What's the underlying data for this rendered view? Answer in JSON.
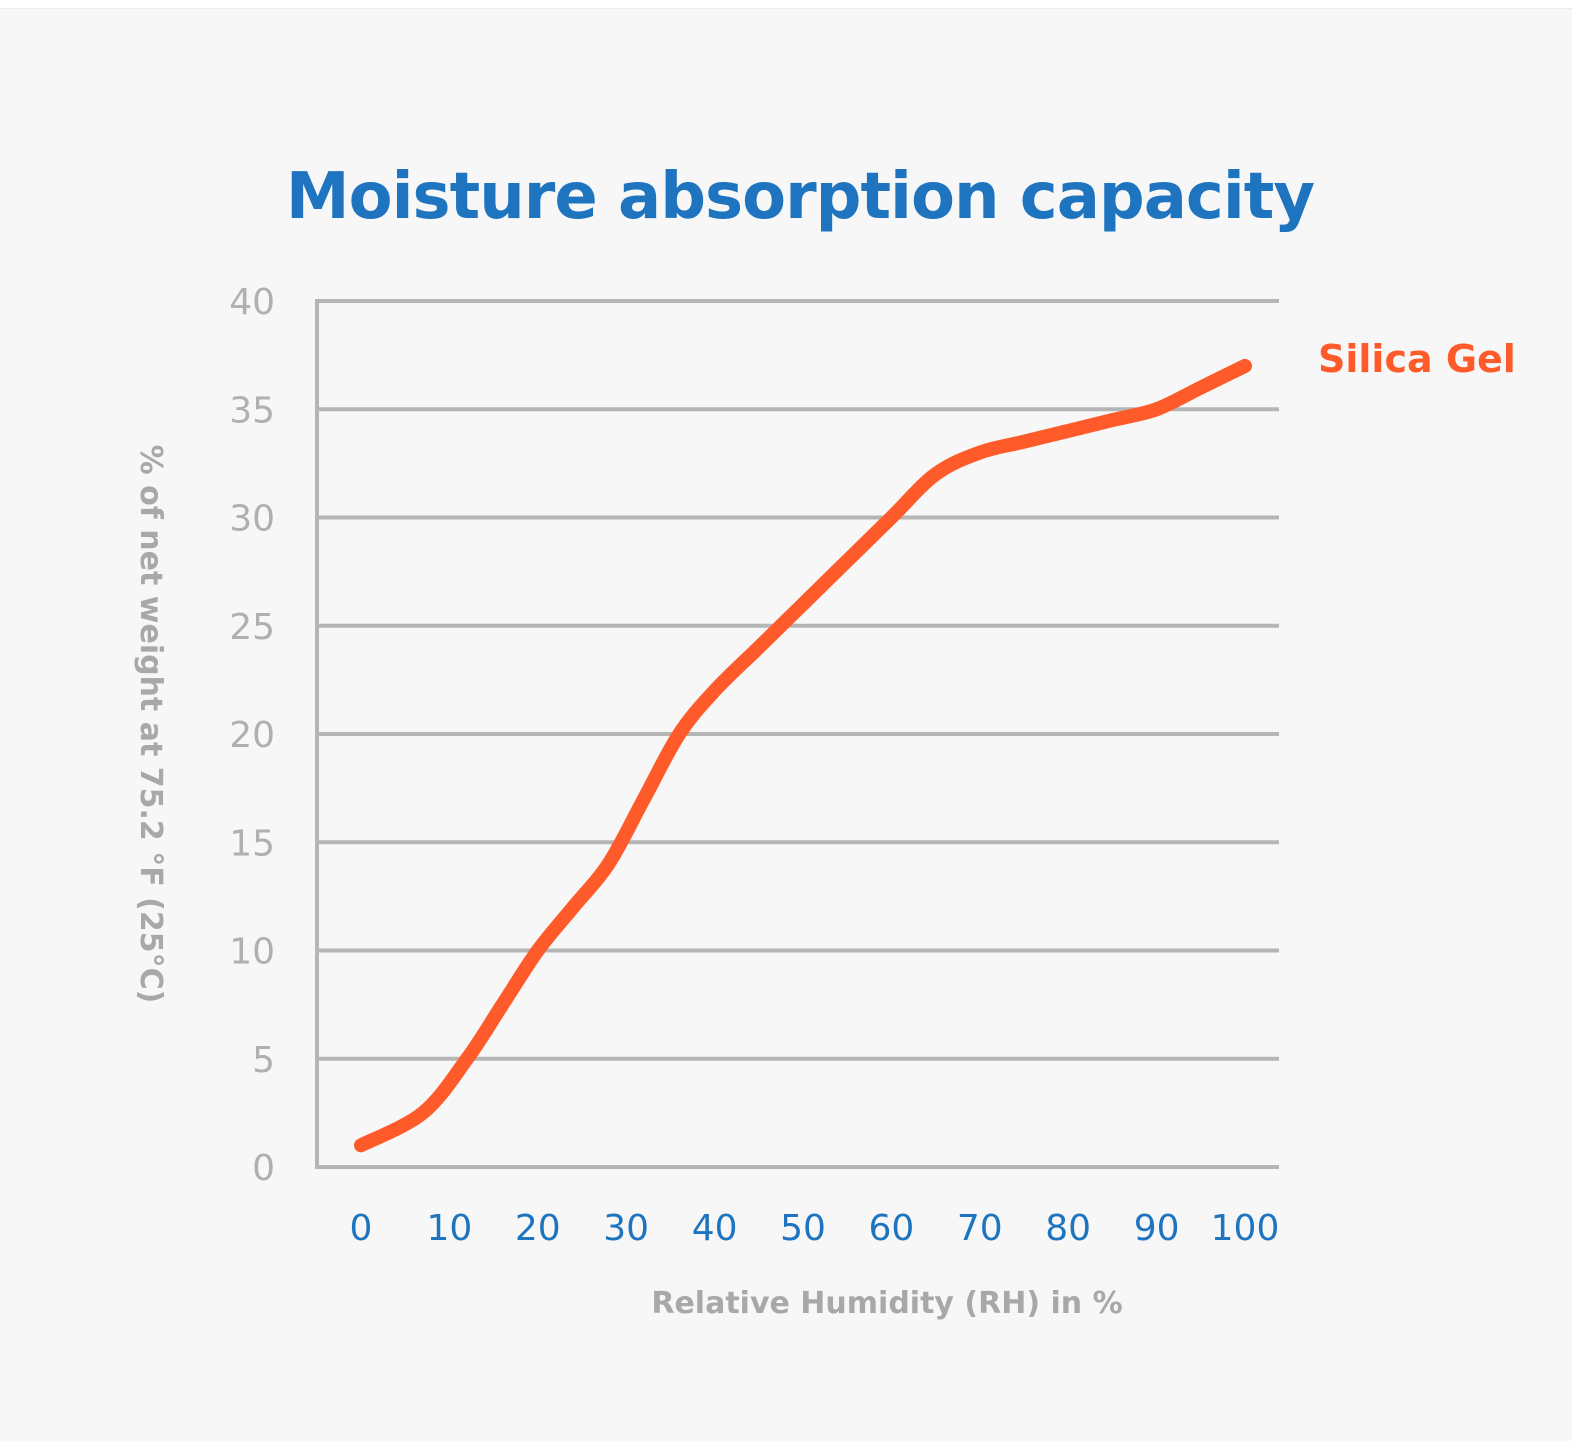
{
  "chart_data": {
    "type": "line",
    "title": "Moisture absorption capacity",
    "xlabel": "Relative Humidity (RH) in %",
    "ylabel": "% of net weight at 75.2 °F (25°C)",
    "xlim": [
      0,
      100
    ],
    "ylim": [
      0,
      40
    ],
    "x_ticks": [
      "0",
      "10",
      "20",
      "30",
      "40",
      "50",
      "60",
      "70",
      "80",
      "90",
      "100"
    ],
    "y_ticks": [
      "0",
      "5",
      "10",
      "15",
      "20",
      "25",
      "30",
      "35",
      "40"
    ],
    "grid": true,
    "series": [
      {
        "name": "Silica Gel",
        "color": "#ff5a2a",
        "x": [
          0,
          7,
          12,
          16,
          20,
          24,
          28,
          32,
          36,
          40,
          45,
          50,
          55,
          60,
          65,
          70,
          75,
          80,
          85,
          90,
          95,
          100
        ],
        "y": [
          1,
          2.5,
          5,
          7.5,
          10,
          12,
          14,
          17,
          20,
          22,
          24,
          26,
          28,
          30,
          32,
          33,
          33.5,
          34,
          34.5,
          35,
          36,
          37
        ]
      }
    ]
  },
  "colors": {
    "background": "#f7f7f7",
    "title": "#1f74c0",
    "grid": "#b5b5b5",
    "y_tick_text": "#b0b0b0",
    "x_tick_text": "#1f74c0",
    "axis_label_text": "#a8a8a8"
  }
}
